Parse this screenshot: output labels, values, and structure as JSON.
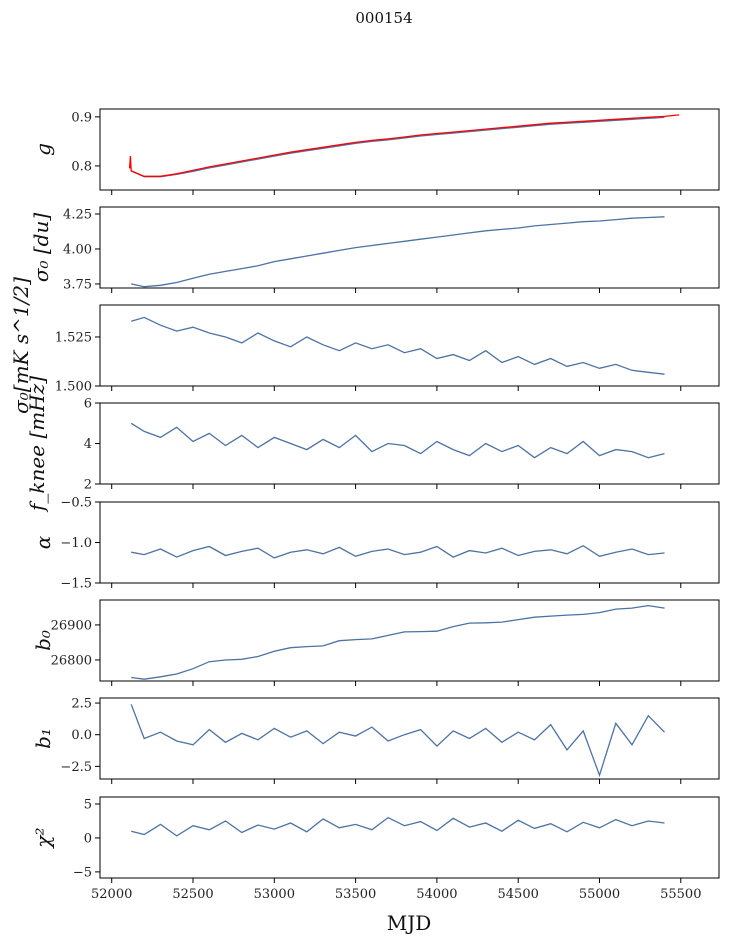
{
  "chart_data": {
    "type": "line",
    "title": "000154",
    "xlabel": "MJD",
    "xlim": [
      51928,
      55735
    ],
    "xticks": [
      52000,
      52500,
      53000,
      53500,
      54000,
      54500,
      55000,
      55500
    ],
    "xtick_labels": [
      "52000",
      "52500",
      "53000",
      "53500",
      "54000",
      "54500",
      "55000",
      "55500"
    ],
    "x": [
      52120,
      52200,
      52300,
      52400,
      52500,
      52600,
      52700,
      52800,
      52900,
      53000,
      53100,
      53200,
      53300,
      53400,
      53500,
      53600,
      53700,
      53800,
      53900,
      54000,
      54100,
      54200,
      54300,
      54400,
      54500,
      54600,
      54700,
      54800,
      54900,
      55000,
      55100,
      55200,
      55300,
      55400
    ],
    "colors": {
      "blue": "#4c72a6",
      "red": "#ff0000"
    },
    "panels": [
      {
        "ylabel": "g",
        "ylim": [
          0.751,
          0.916
        ],
        "yticks": [
          0.8,
          0.9
        ],
        "ytick_labels": [
          "0.8",
          "0.9"
        ],
        "series": [
          {
            "name": "g",
            "color": "#4c72a6",
            "values": [
              0.79,
              0.778,
              0.778,
              0.783,
              0.789,
              0.796,
              0.802,
              0.808,
              0.814,
              0.82,
              0.826,
              0.831,
              0.836,
              0.841,
              0.846,
              0.85,
              0.853,
              0.857,
              0.861,
              0.864,
              0.867,
              0.87,
              0.873,
              0.876,
              0.879,
              0.882,
              0.885,
              0.887,
              0.889,
              0.891,
              0.893,
              0.895,
              0.897,
              0.899
            ]
          },
          {
            "name": "g model",
            "color": "#ff0000",
            "x": [
              52110,
              52115,
              52120,
              52200,
              52300,
              52400,
              52500,
              52600,
              52700,
              52800,
              52900,
              53000,
              53100,
              53200,
              53300,
              53400,
              53500,
              53600,
              53700,
              53800,
              53900,
              54000,
              54100,
              54200,
              54300,
              54400,
              54500,
              54600,
              54700,
              54800,
              54900,
              55000,
              55100,
              55200,
              55300,
              55400,
              55490
            ],
            "values": [
              0.795,
              0.82,
              0.79,
              0.779,
              0.779,
              0.784,
              0.791,
              0.798,
              0.804,
              0.81,
              0.816,
              0.822,
              0.828,
              0.833,
              0.838,
              0.843,
              0.848,
              0.852,
              0.855,
              0.859,
              0.863,
              0.866,
              0.869,
              0.872,
              0.875,
              0.878,
              0.881,
              0.884,
              0.887,
              0.889,
              0.891,
              0.893,
              0.895,
              0.897,
              0.899,
              0.901,
              0.904
            ]
          }
        ]
      },
      {
        "ylabel": "σ₀ [du]",
        "ylim": [
          3.721,
          4.3
        ],
        "yticks": [
          3.75,
          4.0,
          4.25
        ],
        "ytick_labels": [
          "3.75",
          "4.00",
          "4.25"
        ],
        "series": [
          {
            "name": "sigma0_du",
            "color": "#4c72a6",
            "values": [
              3.75,
              3.73,
              3.74,
              3.76,
              3.79,
              3.82,
              3.84,
              3.86,
              3.88,
              3.91,
              3.93,
              3.95,
              3.97,
              3.99,
              4.01,
              4.025,
              4.04,
              4.055,
              4.07,
              4.085,
              4.1,
              4.115,
              4.13,
              4.14,
              4.15,
              4.165,
              4.175,
              4.185,
              4.195,
              4.2,
              4.21,
              4.22,
              4.225,
              4.23
            ]
          }
        ]
      },
      {
        "ylabel": "σ₀[mK s^1/2]",
        "ylim": [
          1.5,
          1.5413
        ],
        "yticks": [
          1.5,
          1.525
        ],
        "ytick_labels": [
          "1.500",
          "1.525"
        ],
        "series": [
          {
            "name": "sigma0_mK",
            "color": "#4c72a6",
            "values": [
              1.533,
              1.535,
              1.531,
              1.528,
              1.53,
              1.527,
              1.525,
              1.522,
              1.527,
              1.523,
              1.52,
              1.525,
              1.521,
              1.518,
              1.522,
              1.519,
              1.521,
              1.517,
              1.519,
              1.514,
              1.516,
              1.513,
              1.518,
              1.512,
              1.515,
              1.511,
              1.514,
              1.51,
              1.512,
              1.509,
              1.511,
              1.508,
              1.507,
              1.506
            ]
          }
        ]
      },
      {
        "ylabel": "f_knee [mHz]",
        "ylim": [
          2,
          6
        ],
        "yticks": [
          2,
          4,
          6
        ],
        "ytick_labels": [
          "2",
          "4",
          "6"
        ],
        "series": [
          {
            "name": "fknee",
            "color": "#4c72a6",
            "values": [
              5.0,
              4.6,
              4.3,
              4.8,
              4.1,
              4.5,
              3.9,
              4.4,
              3.8,
              4.3,
              4.0,
              3.7,
              4.2,
              3.8,
              4.4,
              3.6,
              4.0,
              3.9,
              3.5,
              4.1,
              3.7,
              3.4,
              4.0,
              3.6,
              3.9,
              3.3,
              3.8,
              3.5,
              4.1,
              3.4,
              3.7,
              3.6,
              3.3,
              3.5
            ]
          }
        ]
      },
      {
        "ylabel": "α",
        "ylim": [
          -1.5,
          -0.5
        ],
        "yticks": [
          -1.5,
          -1.0,
          -0.5
        ],
        "ytick_labels": [
          "−1.5",
          "−1.0",
          "−0.5"
        ],
        "series": [
          {
            "name": "alpha",
            "color": "#4c72a6",
            "values": [
              -1.12,
              -1.15,
              -1.08,
              -1.18,
              -1.1,
              -1.05,
              -1.16,
              -1.11,
              -1.07,
              -1.19,
              -1.12,
              -1.09,
              -1.14,
              -1.06,
              -1.17,
              -1.11,
              -1.08,
              -1.15,
              -1.12,
              -1.05,
              -1.18,
              -1.1,
              -1.13,
              -1.07,
              -1.16,
              -1.11,
              -1.09,
              -1.14,
              -1.04,
              -1.17,
              -1.12,
              -1.08,
              -1.15,
              -1.13
            ]
          }
        ]
      },
      {
        "ylabel": "b₀",
        "ylim": [
          26740,
          26971
        ],
        "yticks": [
          26800,
          26900
        ],
        "ytick_labels": [
          "26800",
          "26900"
        ],
        "series": [
          {
            "name": "b0",
            "color": "#4c72a6",
            "values": [
              26750,
              26745,
              26752,
              26760,
              26775,
              26795,
              26800,
              26802,
              26810,
              26825,
              26835,
              26838,
              26840,
              26855,
              26858,
              26860,
              26870,
              26880,
              26881,
              26882,
              26895,
              26905,
              26906,
              26908,
              26915,
              26922,
              26925,
              26928,
              26930,
              26935,
              26945,
              26948,
              26955,
              26948
            ]
          }
        ]
      },
      {
        "ylabel": "b₁",
        "ylim": [
          -3.5,
          2.9
        ],
        "yticks": [
          -2.5,
          0.0,
          2.5
        ],
        "ytick_labels": [
          "−2.5",
          "0.0",
          "2.5"
        ],
        "series": [
          {
            "name": "b1",
            "color": "#4c72a6",
            "values": [
              2.4,
              -0.3,
              0.2,
              -0.5,
              -0.8,
              0.4,
              -0.6,
              0.1,
              -0.4,
              0.5,
              -0.2,
              0.3,
              -0.7,
              0.2,
              -0.1,
              0.6,
              -0.5,
              0.0,
              0.4,
              -0.9,
              0.3,
              -0.3,
              0.5,
              -0.6,
              0.2,
              -0.4,
              0.8,
              -1.2,
              0.3,
              -3.2,
              0.9,
              -0.8,
              1.5,
              0.2
            ]
          }
        ]
      },
      {
        "ylabel": "χ²",
        "ylim": [
          -5.9,
          6.03
        ],
        "yticks": [
          -5,
          0,
          5
        ],
        "ytick_labels": [
          "−5",
          "0",
          "5"
        ],
        "series": [
          {
            "name": "chi2",
            "color": "#4c72a6",
            "values": [
              1.0,
              0.5,
              2.0,
              0.3,
              1.8,
              1.2,
              2.5,
              0.8,
              1.9,
              1.3,
              2.2,
              0.9,
              2.8,
              1.5,
              2.0,
              1.2,
              3.0,
              1.8,
              2.4,
              1.1,
              2.9,
              1.6,
              2.2,
              1.0,
              2.6,
              1.4,
              2.1,
              0.9,
              2.3,
              1.5,
              2.7,
              1.8,
              2.5,
              2.2
            ]
          }
        ]
      }
    ]
  }
}
